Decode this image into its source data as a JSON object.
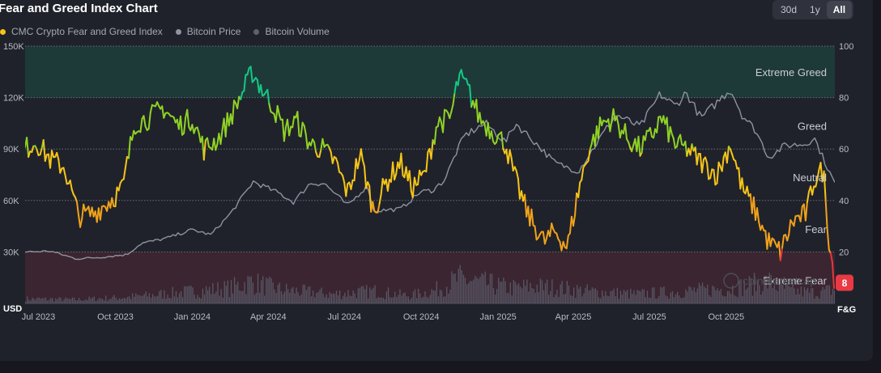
{
  "header": {
    "title": "Fear and Greed Index Chart",
    "range_buttons": [
      {
        "label": "30d",
        "active": false
      },
      {
        "label": "1y",
        "active": false
      },
      {
        "label": "All",
        "active": true
      }
    ]
  },
  "legend": [
    {
      "label": "CMC Crypto Fear and Greed Index",
      "color": "#f5c518"
    },
    {
      "label": "Bitcoin Price",
      "color": "#8e93a0"
    },
    {
      "label": "Bitcoin Volume",
      "color": "#5e6270"
    }
  ],
  "watermark": "coinmarketcap",
  "chart_data": {
    "type": "line",
    "x_axis": {
      "ticks": [
        "Jul 2023",
        "Oct 2023",
        "Jan 2024",
        "Apr 2024",
        "Jul 2024",
        "Oct 2024",
        "Jan 2025",
        "Apr 2025",
        "Jul 2025",
        "Oct 2025"
      ],
      "range": [
        "2023-06-15",
        "2026-02-08"
      ]
    },
    "y_left": {
      "unit_label": "USD",
      "ticks": [
        "30K",
        "60K",
        "90K",
        "120K",
        "150K"
      ],
      "tick_values": [
        30000,
        60000,
        90000,
        120000,
        150000
      ],
      "range": [
        0,
        150000
      ]
    },
    "y_right": {
      "unit_label": "F&G",
      "ticks": [
        "20",
        "40",
        "60",
        "80",
        "100"
      ],
      "tick_values": [
        20,
        40,
        60,
        80,
        100
      ],
      "range": [
        0,
        100
      ]
    },
    "zones": [
      {
        "label": "Extreme Greed",
        "from": 80,
        "to": 100,
        "color": "#1e3a38",
        "label_at": 90
      },
      {
        "label": "Greed",
        "from": 60,
        "to": 80,
        "label_at": 69
      },
      {
        "label": "Neutral",
        "from": 40,
        "to": 60,
        "label_at": 49
      },
      {
        "label": "Fear",
        "from": 20,
        "to": 40,
        "label_at": 29
      },
      {
        "label": "Extreme Fear",
        "from": 0,
        "to": 20,
        "color": "#3b2530",
        "label_at": 9
      }
    ],
    "current_value": "8",
    "grid": true,
    "series": [
      {
        "name": "CMC Crypto Fear and Greed Index",
        "axis": "right",
        "dates": [
          "2023-06-15",
          "2023-06-28",
          "2023-07-15",
          "2023-08-01",
          "2023-08-18",
          "2023-09-05",
          "2023-09-25",
          "2023-10-10",
          "2023-10-24",
          "2023-11-10",
          "2023-11-28",
          "2023-12-15",
          "2024-01-01",
          "2024-01-15",
          "2024-02-01",
          "2024-02-15",
          "2024-03-01",
          "2024-03-13",
          "2024-03-25",
          "2024-04-08",
          "2024-04-20",
          "2024-05-05",
          "2024-05-21",
          "2024-06-05",
          "2024-06-20",
          "2024-07-05",
          "2024-07-20",
          "2024-08-05",
          "2024-08-20",
          "2024-09-06",
          "2024-09-20",
          "2024-10-05",
          "2024-10-20",
          "2024-11-05",
          "2024-11-15",
          "2024-11-25",
          "2024-12-10",
          "2024-12-25",
          "2025-01-10",
          "2025-01-20",
          "2025-02-05",
          "2025-02-25",
          "2025-03-10",
          "2025-03-25",
          "2025-04-08",
          "2025-04-20",
          "2025-05-05",
          "2025-05-20",
          "2025-06-05",
          "2025-06-20",
          "2025-07-05",
          "2025-07-15",
          "2025-08-01",
          "2025-08-15",
          "2025-09-01",
          "2025-09-20",
          "2025-10-06",
          "2025-10-20",
          "2025-11-05",
          "2025-11-20",
          "2025-12-05",
          "2025-12-20",
          "2026-01-05",
          "2026-01-14",
          "2026-01-25",
          "2026-02-01",
          "2026-02-08"
        ],
        "values": [
          60,
          63,
          56,
          53,
          34,
          35,
          40,
          45,
          70,
          72,
          76,
          69,
          72,
          60,
          64,
          72,
          82,
          90,
          83,
          76,
          67,
          71,
          62,
          60,
          55,
          43,
          58,
          36,
          47,
          55,
          45,
          50,
          70,
          72,
          88,
          84,
          72,
          67,
          62,
          50,
          35,
          24,
          28,
          22,
          45,
          60,
          70,
          72,
          64,
          60,
          66,
          72,
          62,
          60,
          55,
          50,
          62,
          45,
          36,
          24,
          20,
          32,
          35,
          48,
          52,
          25,
          8
        ],
        "color": "#f5c518",
        "colors_by_zone": [
          "#e5363d",
          "#f0a21a",
          "#f5c518",
          "#8fd225",
          "#16c784"
        ]
      },
      {
        "name": "Bitcoin Price",
        "axis": "left",
        "dates": [
          "2023-06-15",
          "2023-07-15",
          "2023-08-15",
          "2023-09-15",
          "2023-10-15",
          "2023-11-01",
          "2023-12-01",
          "2024-01-01",
          "2024-01-23",
          "2024-02-15",
          "2024-03-01",
          "2024-03-14",
          "2024-04-15",
          "2024-05-01",
          "2024-05-21",
          "2024-06-07",
          "2024-07-05",
          "2024-07-29",
          "2024-08-05",
          "2024-09-06",
          "2024-09-30",
          "2024-10-15",
          "2024-10-29",
          "2024-11-12",
          "2024-11-22",
          "2024-12-17",
          "2025-01-10",
          "2025-01-22",
          "2025-02-10",
          "2025-03-10",
          "2025-04-07",
          "2025-05-01",
          "2025-05-22",
          "2025-06-20",
          "2025-07-14",
          "2025-08-01",
          "2025-08-14",
          "2025-09-01",
          "2025-10-06",
          "2025-10-20",
          "2025-11-05",
          "2025-11-21",
          "2025-12-10",
          "2026-01-05",
          "2026-01-14",
          "2026-02-01",
          "2026-02-08"
        ],
        "values": [
          30000,
          30500,
          26000,
          27000,
          28500,
          35000,
          38000,
          43000,
          40000,
          52000,
          62000,
          71000,
          64000,
          59000,
          70000,
          70000,
          57000,
          69000,
          54000,
          55000,
          65000,
          66000,
          72000,
          88000,
          98000,
          105000,
          94000,
          105000,
          96000,
          82000,
          77000,
          95000,
          110000,
          103000,
          122000,
          115000,
          123000,
          108000,
          125000,
          110000,
          101000,
          85000,
          92000,
          93000,
          97000,
          77000,
          70000
        ],
        "color": "#8e93a0"
      },
      {
        "name": "Bitcoin Volume",
        "axis": "left",
        "dates": [
          "2023-06-15",
          "2023-08-15",
          "2023-10-15",
          "2023-12-15",
          "2024-02-15",
          "2024-03-10",
          "2024-04-15",
          "2024-06-15",
          "2024-08-05",
          "2024-09-15",
          "2024-10-15",
          "2024-11-15",
          "2024-12-15",
          "2025-01-15",
          "2025-02-15",
          "2025-03-15",
          "2025-04-15",
          "2025-06-15",
          "2025-08-15",
          "2025-10-10",
          "2025-11-20",
          "2025-12-15",
          "2026-01-15",
          "2026-02-08"
        ],
        "values": [
          3000,
          2500,
          4000,
          7000,
          10000,
          14000,
          9000,
          6000,
          8000,
          5000,
          8000,
          16000,
          13000,
          10000,
          11000,
          10000,
          8000,
          6000,
          8000,
          10000,
          14000,
          8000,
          7000,
          9000
        ],
        "color": "#5e6270"
      }
    ]
  }
}
